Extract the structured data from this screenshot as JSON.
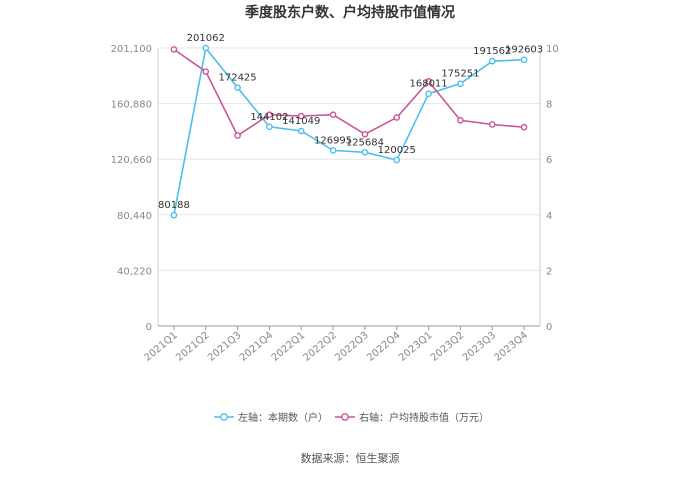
{
  "chart_data": {
    "type": "line",
    "title": "季度股东户数、户均持股市值情况",
    "categories": [
      "2021Q1",
      "2021Q2",
      "2021Q3",
      "2021Q4",
      "2022Q1",
      "2022Q2",
      "2022Q3",
      "2022Q4",
      "2023Q1",
      "2023Q2",
      "2023Q3",
      "2023Q4"
    ],
    "left_axis": {
      "ticks": [
        "0",
        "40,220",
        "80,440",
        "120,660",
        "160,880",
        "201,100"
      ],
      "ylim": [
        0,
        201100
      ]
    },
    "right_axis": {
      "ticks": [
        "0",
        "2",
        "4",
        "6",
        "8",
        "10"
      ],
      "ylim": [
        0,
        10
      ]
    },
    "series": [
      {
        "name": "左轴：本期数（户）",
        "axis": "left",
        "color": "#4dbfed",
        "values": [
          80188,
          201062,
          172425,
          144102,
          141049,
          126995,
          125684,
          120025,
          168011,
          175251,
          191562,
          192603
        ],
        "labels": [
          "80188",
          "201062",
          "172425",
          "144102",
          "141049",
          "126995",
          "125684",
          "120025",
          "168011",
          "175251",
          "191562",
          "192603"
        ]
      },
      {
        "name": "右轴：户均持股市值（万元）",
        "axis": "right",
        "color": "#cc5599",
        "values": [
          9.95,
          9.15,
          6.85,
          7.6,
          7.55,
          7.6,
          6.9,
          7.5,
          8.8,
          7.4,
          7.25,
          7.15
        ]
      }
    ],
    "grid": true,
    "legend_position": "bottom"
  },
  "source": "数据来源：恒生聚源"
}
